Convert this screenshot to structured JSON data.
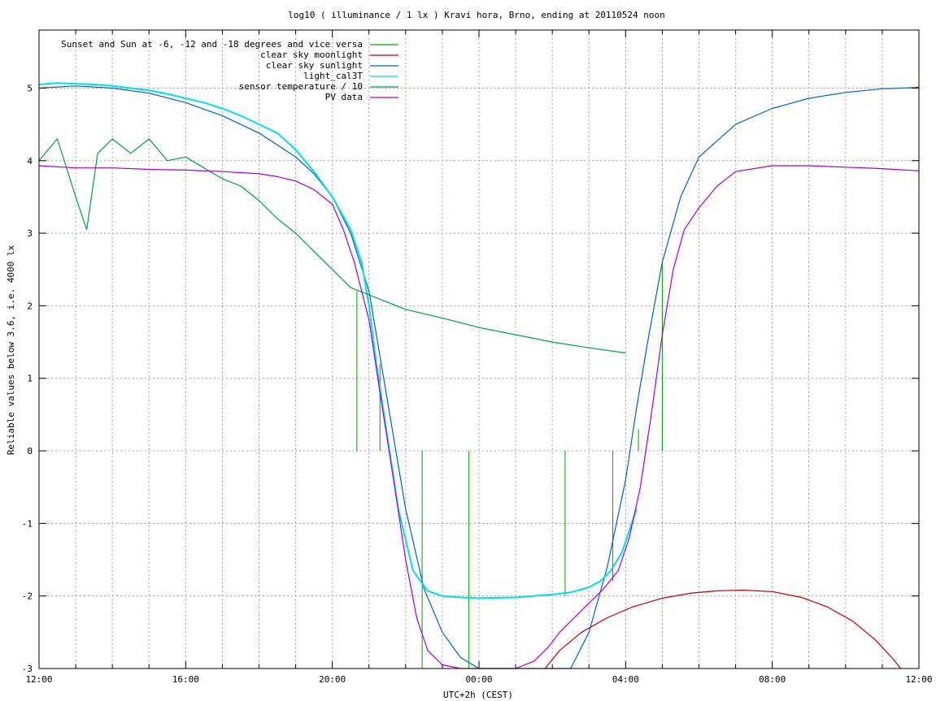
{
  "chart_data": {
    "type": "line",
    "title": "log10 ( illuminance / 1 lx ) Kravi hora, Brno, ending at 20110524 noon",
    "xlabel": "UTC+2h (CEST)",
    "ylabel": "Reliable values below 3.6, i.e. 4000 lx",
    "xlim": [
      12,
      36
    ],
    "ylim": [
      -3,
      5.8
    ],
    "x_ticks": [
      {
        "x": 12,
        "label": "12:00"
      },
      {
        "x": 16,
        "label": "16:00"
      },
      {
        "x": 20,
        "label": "20:00"
      },
      {
        "x": 24,
        "label": "00:00"
      },
      {
        "x": 28,
        "label": "04:00"
      },
      {
        "x": 32,
        "label": "08:00"
      },
      {
        "x": 36,
        "label": "12:00"
      }
    ],
    "y_ticks": [
      5,
      4,
      3,
      2,
      1,
      0,
      -1,
      -2,
      -3
    ],
    "grid": true,
    "legend_position": "top-left",
    "series": [
      {
        "name": "Sunset and Sun at -6, -12 and -18 degrees and vice versa",
        "color": "#00a000",
        "kind": "impulses",
        "x": [
          20.67,
          21.3,
          22.45,
          23.72,
          26.35,
          27.65,
          28.35,
          29.0
        ],
        "y": [
          2.2,
          1.2,
          0,
          0,
          0,
          0,
          0.3,
          2.6
        ]
      },
      {
        "name": "clear sky moonlight",
        "color": "#c00000",
        "x": [
          25.8,
          26.2,
          26.8,
          27.5,
          28.2,
          29.0,
          29.8,
          30.5,
          31.2,
          32.0,
          32.8,
          33.5,
          34.2,
          34.8,
          35.3,
          35.5
        ],
        "y": [
          -3.0,
          -2.75,
          -2.5,
          -2.3,
          -2.15,
          -2.03,
          -1.96,
          -1.93,
          -1.92,
          -1.94,
          -2.02,
          -2.15,
          -2.35,
          -2.6,
          -2.87,
          -3.0
        ]
      },
      {
        "name": "clear sky sunlight",
        "color": "#0060c0",
        "x": [
          12,
          13,
          14,
          15,
          16,
          17,
          18,
          19,
          19.5,
          20,
          20.5,
          21,
          21.3,
          21.6,
          22,
          22.5,
          23,
          23.5,
          24.0,
          26.5,
          27,
          27.5,
          28,
          28.3,
          28.6,
          29,
          29.5,
          30,
          31,
          32,
          33,
          34,
          35,
          36
        ],
        "y": [
          5.0,
          5.03,
          5.0,
          4.93,
          4.8,
          4.62,
          4.38,
          4.05,
          3.82,
          3.5,
          3.0,
          2.2,
          1.3,
          0.4,
          -0.8,
          -1.9,
          -2.5,
          -2.85,
          -3.0,
          -3.0,
          -2.5,
          -1.6,
          -0.4,
          0.6,
          1.5,
          2.6,
          3.5,
          4.05,
          4.5,
          4.72,
          4.86,
          4.94,
          4.99,
          5.01
        ]
      },
      {
        "name": "light_cal3T",
        "color": "#00e0e0",
        "x": [
          12,
          12.5,
          13,
          13.5,
          14,
          14.5,
          15,
          15.5,
          16,
          16.5,
          17,
          17.5,
          18,
          18.5,
          19,
          19.5,
          20,
          20.5,
          20.8,
          21,
          21.2,
          21.5,
          21.8,
          22.2,
          22.6,
          23,
          23.5,
          24,
          25,
          26,
          26.5,
          27,
          27.3,
          27.6,
          27.9,
          28.1,
          28.3
        ],
        "y": [
          5.05,
          5.07,
          5.06,
          5.05,
          5.03,
          5.0,
          4.97,
          4.92,
          4.86,
          4.8,
          4.72,
          4.62,
          4.5,
          4.38,
          4.15,
          3.85,
          3.5,
          3.05,
          2.6,
          2.0,
          1.2,
          0.2,
          -0.8,
          -1.65,
          -1.93,
          -2.0,
          -2.02,
          -2.03,
          -2.02,
          -1.98,
          -1.95,
          -1.88,
          -1.8,
          -1.65,
          -1.4,
          -1.1,
          -0.8
        ]
      },
      {
        "name": "sensor temperature / 10",
        "color": "#00a040",
        "x": [
          12,
          12.5,
          13,
          13.3,
          13.6,
          14,
          14.5,
          15,
          15.5,
          16,
          16.5,
          17,
          17.5,
          18,
          18.5,
          19,
          19.5,
          20,
          20.5,
          21,
          21.5,
          22,
          23,
          24,
          25,
          26,
          27,
          28
        ],
        "y": [
          4.0,
          4.3,
          3.5,
          3.05,
          4.1,
          4.3,
          4.1,
          4.3,
          4.0,
          4.05,
          3.9,
          3.75,
          3.65,
          3.45,
          3.2,
          3.0,
          2.75,
          2.5,
          2.25,
          2.15,
          2.05,
          1.95,
          1.83,
          1.7,
          1.6,
          1.5,
          1.42,
          1.35
        ]
      },
      {
        "name": "PV data",
        "color": "#a000e0",
        "x": [
          12,
          13,
          14,
          15,
          16,
          17,
          18,
          18.5,
          19,
          19.5,
          20,
          20.3,
          20.6,
          21,
          21.3,
          21.7,
          22,
          22.3,
          22.6,
          23,
          23.5,
          24.5,
          25,
          25.5,
          25.9,
          26.2,
          26.6,
          27,
          27.4,
          27.8,
          28.1,
          28.4,
          28.7,
          29,
          29.3,
          29.6,
          30,
          30.5,
          31,
          32,
          33,
          34,
          35,
          36
        ],
        "y": [
          3.93,
          3.9,
          3.9,
          3.88,
          3.87,
          3.85,
          3.82,
          3.78,
          3.72,
          3.6,
          3.4,
          3.05,
          2.6,
          1.8,
          0.8,
          -0.5,
          -1.5,
          -2.3,
          -2.75,
          -2.95,
          -3.0,
          -3.0,
          -3.0,
          -2.9,
          -2.7,
          -2.5,
          -2.3,
          -2.1,
          -1.9,
          -1.65,
          -1.2,
          -0.5,
          0.5,
          1.6,
          2.5,
          3.05,
          3.35,
          3.65,
          3.85,
          3.93,
          3.93,
          3.91,
          3.89,
          3.86
        ]
      }
    ]
  }
}
